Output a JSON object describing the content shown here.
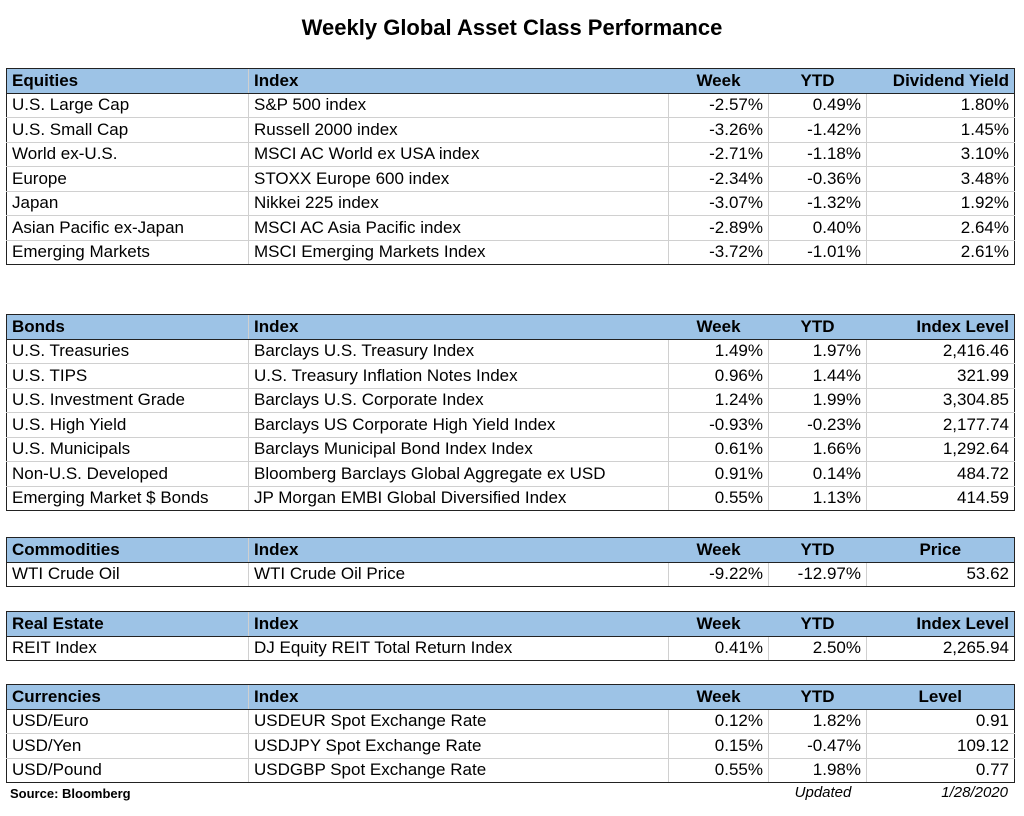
{
  "title": "Weekly Global Asset Class Performance",
  "colors": {
    "header_bg": "#9dc3e6",
    "border": "#222222"
  },
  "equities": {
    "headers": [
      "Equities",
      "Index",
      "Week",
      "YTD",
      "Dividend Yield"
    ],
    "rows": [
      [
        "U.S. Large Cap",
        "S&P 500 index",
        "-2.57%",
        "0.49%",
        "1.80%"
      ],
      [
        "U.S. Small Cap",
        "Russell 2000 index",
        "-3.26%",
        "-1.42%",
        "1.45%"
      ],
      [
        "World ex-U.S.",
        "MSCI AC World ex USA index",
        "-2.71%",
        "-1.18%",
        "3.10%"
      ],
      [
        "Europe",
        "STOXX Europe 600 index",
        "-2.34%",
        "-0.36%",
        "3.48%"
      ],
      [
        "Japan",
        "Nikkei 225 index",
        "-3.07%",
        "-1.32%",
        "1.92%"
      ],
      [
        "Asian Pacific ex-Japan",
        "MSCI AC Asia Pacific index",
        "-2.89%",
        "0.40%",
        "2.64%"
      ],
      [
        "Emerging Markets",
        "MSCI Emerging Markets Index",
        "-3.72%",
        "-1.01%",
        "2.61%"
      ]
    ]
  },
  "bonds": {
    "headers": [
      "Bonds",
      "Index",
      "Week",
      "YTD",
      "Index Level"
    ],
    "rows": [
      [
        "U.S. Treasuries",
        "Barclays U.S. Treasury Index",
        "1.49%",
        "1.97%",
        "2,416.46"
      ],
      [
        "U.S. TIPS",
        "U.S. Treasury Inflation Notes Index",
        "0.96%",
        "1.44%",
        "321.99"
      ],
      [
        "U.S. Investment Grade",
        "Barclays U.S. Corporate Index",
        "1.24%",
        "1.99%",
        "3,304.85"
      ],
      [
        "U.S. High Yield",
        "Barclays US Corporate High Yield Index",
        "-0.93%",
        "-0.23%",
        "2,177.74"
      ],
      [
        "U.S. Municipals",
        "Barclays Municipal Bond Index Index",
        "0.61%",
        "1.66%",
        "1,292.64"
      ],
      [
        "Non-U.S. Developed",
        "Bloomberg Barclays Global Aggregate ex USD",
        "0.91%",
        "0.14%",
        "484.72"
      ],
      [
        "Emerging Market $ Bonds",
        "JP Morgan EMBI Global Diversified Index",
        "0.55%",
        "1.13%",
        "414.59"
      ]
    ]
  },
  "commodities": {
    "headers": [
      "Commodities",
      "Index",
      "Week",
      "YTD",
      "Price"
    ],
    "rows": [
      [
        "WTI Crude Oil",
        "WTI Crude Oil Price",
        "-9.22%",
        "-12.97%",
        "53.62"
      ]
    ]
  },
  "real_estate": {
    "headers": [
      "Real Estate",
      "Index",
      "Week",
      "YTD",
      "Index Level"
    ],
    "rows": [
      [
        "REIT Index",
        "DJ Equity REIT Total Return Index",
        "0.41%",
        "2.50%",
        "2,265.94"
      ]
    ]
  },
  "currencies": {
    "headers": [
      "Currencies",
      "Index",
      "Week",
      "YTD",
      "Level"
    ],
    "rows": [
      [
        "USD/Euro",
        "USDEUR Spot Exchange Rate",
        "0.12%",
        "1.82%",
        "0.91"
      ],
      [
        "USD/Yen",
        "USDJPY Spot Exchange Rate",
        "0.15%",
        "-0.47%",
        "109.12"
      ],
      [
        "USD/Pound",
        "USDGBP Spot Exchange Rate",
        "0.55%",
        "1.98%",
        "0.77"
      ]
    ]
  },
  "footer": {
    "source": "Source: Bloomberg",
    "updated_label": "Updated",
    "updated_date": "1/28/2020"
  }
}
